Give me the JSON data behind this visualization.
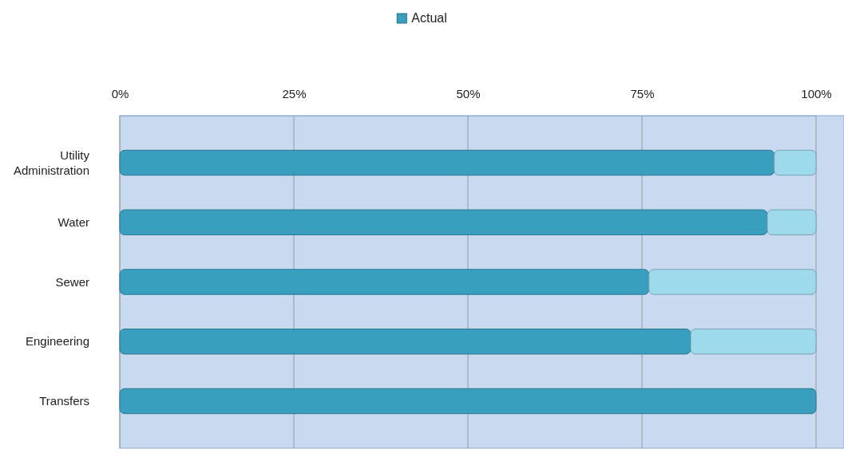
{
  "chart_data": {
    "type": "bar",
    "orientation": "horizontal",
    "stacked": true,
    "categories": [
      "Utility Administration",
      "Water",
      "Sewer",
      "Engineering",
      "Transfers"
    ],
    "series": [
      {
        "name": "Actual",
        "color": "#3a9fbf",
        "values": [
          94,
          93,
          76,
          82,
          100
        ]
      },
      {
        "color": "#9fd9ec",
        "values": [
          6,
          7,
          24,
          18,
          0
        ]
      }
    ],
    "xlim": [
      0,
      100
    ],
    "xticks": [
      {
        "value": 0,
        "label": "0%"
      },
      {
        "value": 25,
        "label": "25%"
      },
      {
        "value": 50,
        "label": "50%"
      },
      {
        "value": 75,
        "label": "75%"
      },
      {
        "value": 100,
        "label": "100%"
      }
    ],
    "grid": "x",
    "legend": "top"
  }
}
